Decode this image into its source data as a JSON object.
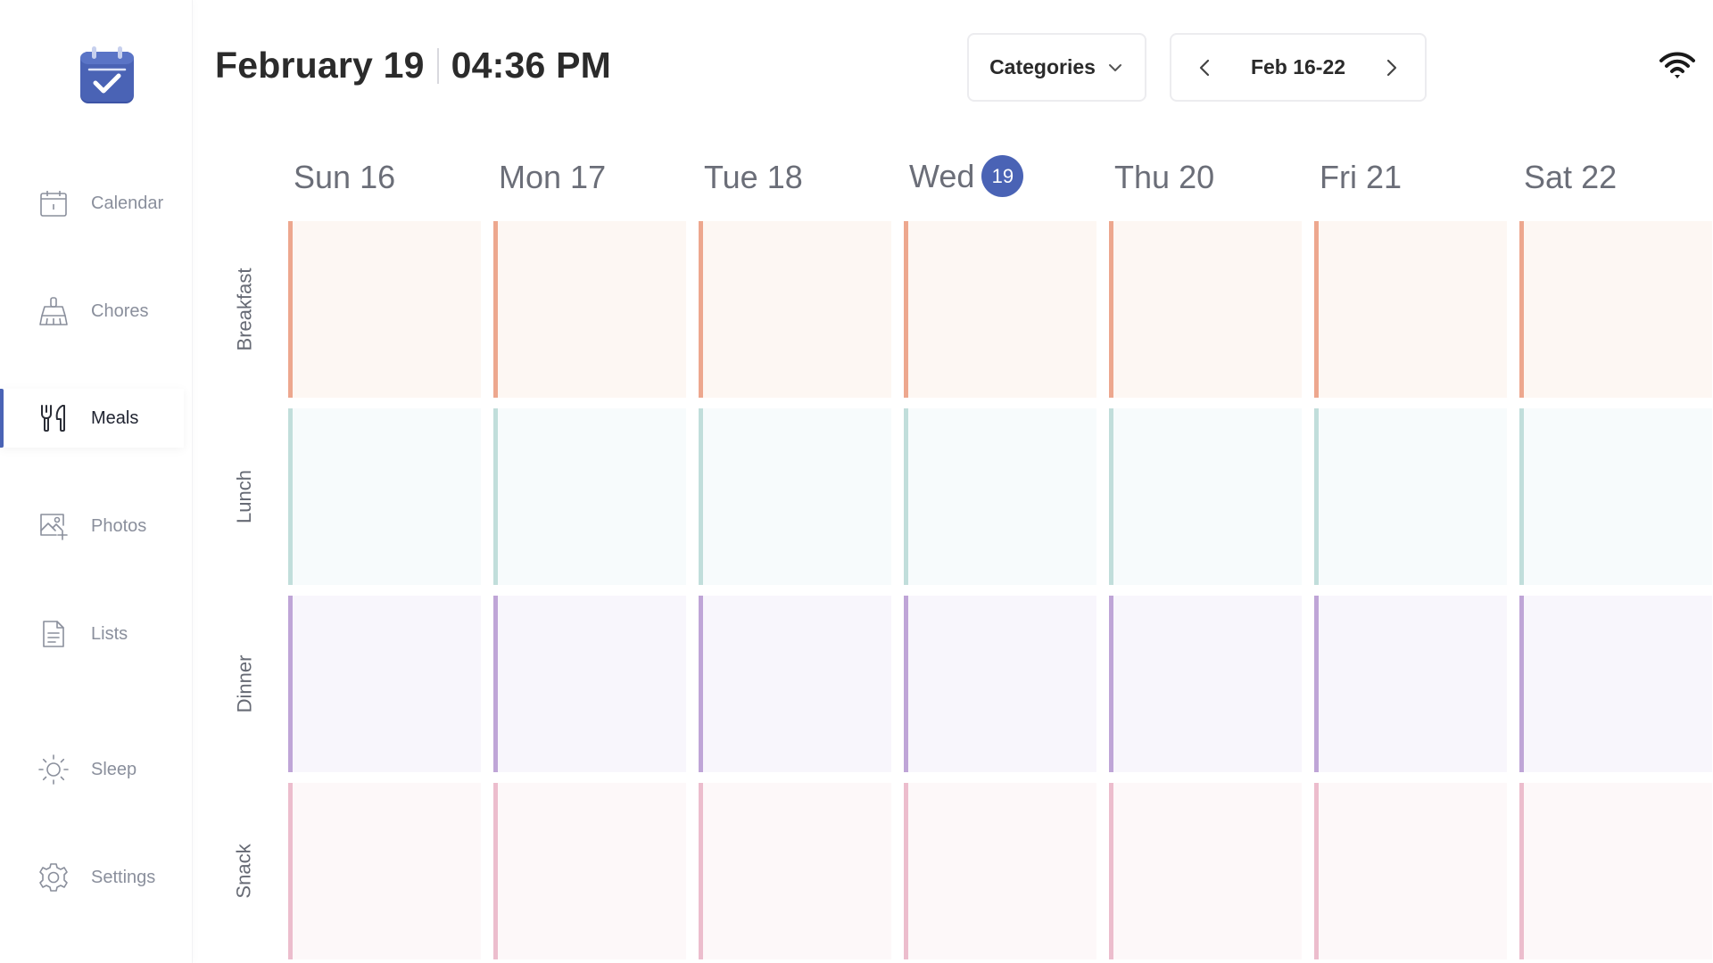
{
  "sidebar": {
    "items": [
      {
        "label": "Calendar",
        "icon": "calendar-icon",
        "active": false
      },
      {
        "label": "Chores",
        "icon": "broom-icon",
        "active": false
      },
      {
        "label": "Meals",
        "icon": "utensils-icon",
        "active": true
      },
      {
        "label": "Photos",
        "icon": "photo-add-icon",
        "active": false
      },
      {
        "label": "Lists",
        "icon": "list-icon",
        "active": false
      },
      {
        "label": "Sleep",
        "icon": "sun-icon",
        "active": false
      },
      {
        "label": "Settings",
        "icon": "gear-icon",
        "active": false
      }
    ]
  },
  "header": {
    "date": "February 19",
    "time": "04:36 PM",
    "categories_label": "Categories",
    "week_range": "Feb 16-22"
  },
  "week": {
    "days": [
      {
        "name": "Sun",
        "num": "16",
        "today": false
      },
      {
        "name": "Mon",
        "num": "17",
        "today": false
      },
      {
        "name": "Tue",
        "num": "18",
        "today": false
      },
      {
        "name": "Wed",
        "num": "19",
        "today": true
      },
      {
        "name": "Thu",
        "num": "20",
        "today": false
      },
      {
        "name": "Fri",
        "num": "21",
        "today": false
      },
      {
        "name": "Sat",
        "num": "22",
        "today": false
      }
    ]
  },
  "meals": [
    {
      "label": "Breakfast",
      "accent": "#eda78e",
      "bg": "#fdf7f3"
    },
    {
      "label": "Lunch",
      "accent": "#c1dedb",
      "bg": "#f7fbfc"
    },
    {
      "label": "Dinner",
      "accent": "#bfa5d7",
      "bg": "#f8f6fc"
    },
    {
      "label": "Snack",
      "accent": "#ecbdcd",
      "bg": "#fdf8f9"
    }
  ],
  "colors": {
    "brand": "#4a63b5",
    "muted_text": "#8a8f9c"
  }
}
